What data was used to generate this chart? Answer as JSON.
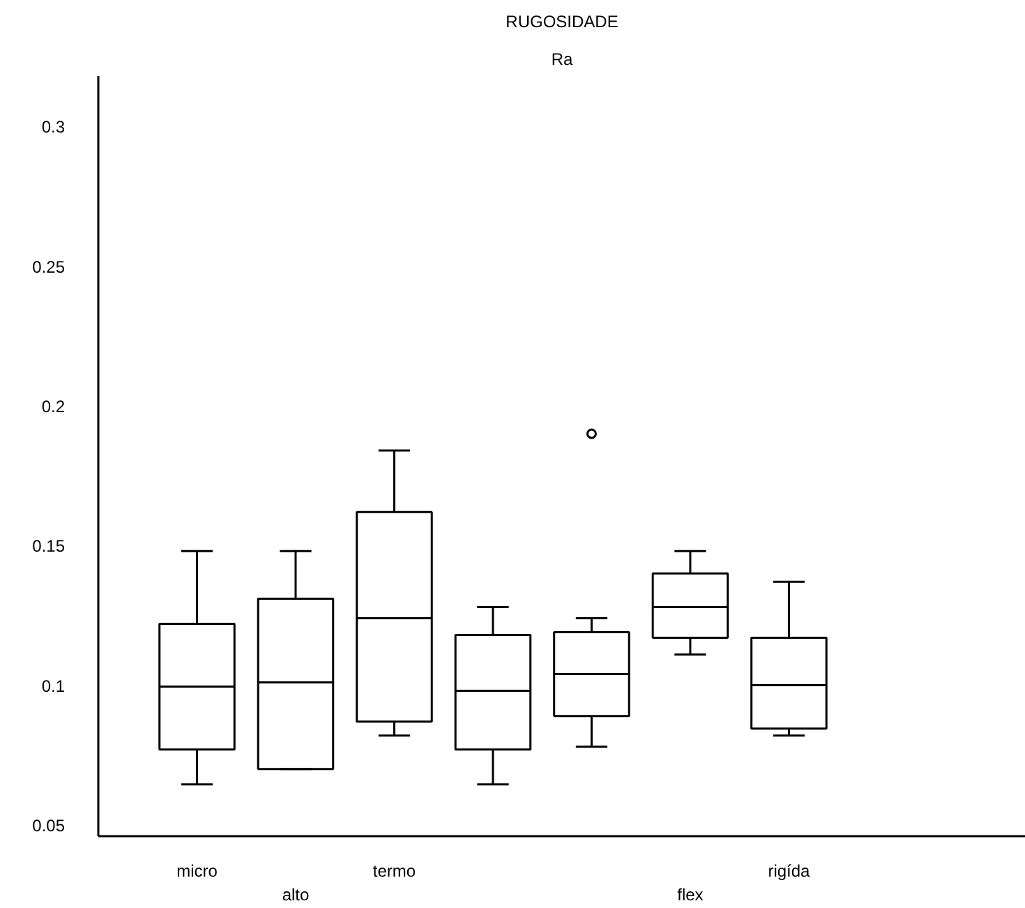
{
  "chart_data": {
    "type": "box",
    "title": "RUGOSIDADE",
    "subtitle": "Ra",
    "categories": [
      "micro",
      "alto",
      "termo",
      null,
      null,
      "flex",
      "rigída"
    ],
    "boxes": [
      {
        "low": 0.0645,
        "q1": 0.077,
        "median": 0.0995,
        "q3": 0.122,
        "high": 0.148
      },
      {
        "low": 0.07,
        "q1": 0.07,
        "median": 0.101,
        "q3": 0.131,
        "high": 0.148
      },
      {
        "low": 0.082,
        "q1": 0.087,
        "median": 0.124,
        "q3": 0.162,
        "high": 0.184
      },
      {
        "low": 0.0645,
        "q1": 0.077,
        "median": 0.098,
        "q3": 0.118,
        "high": 0.128
      },
      {
        "low": 0.078,
        "q1": 0.089,
        "median": 0.104,
        "q3": 0.119,
        "high": 0.124,
        "outliers": [
          0.19
        ]
      },
      {
        "low": 0.111,
        "q1": 0.117,
        "median": 0.128,
        "q3": 0.14,
        "high": 0.148
      },
      {
        "low": 0.082,
        "q1": 0.0845,
        "median": 0.1,
        "q3": 0.117,
        "high": 0.137
      }
    ],
    "ylim": [
      0.046,
      0.318
    ],
    "yticks": [
      0.05,
      0.1,
      0.15,
      0.2,
      0.25,
      0.3
    ],
    "grid": false
  }
}
